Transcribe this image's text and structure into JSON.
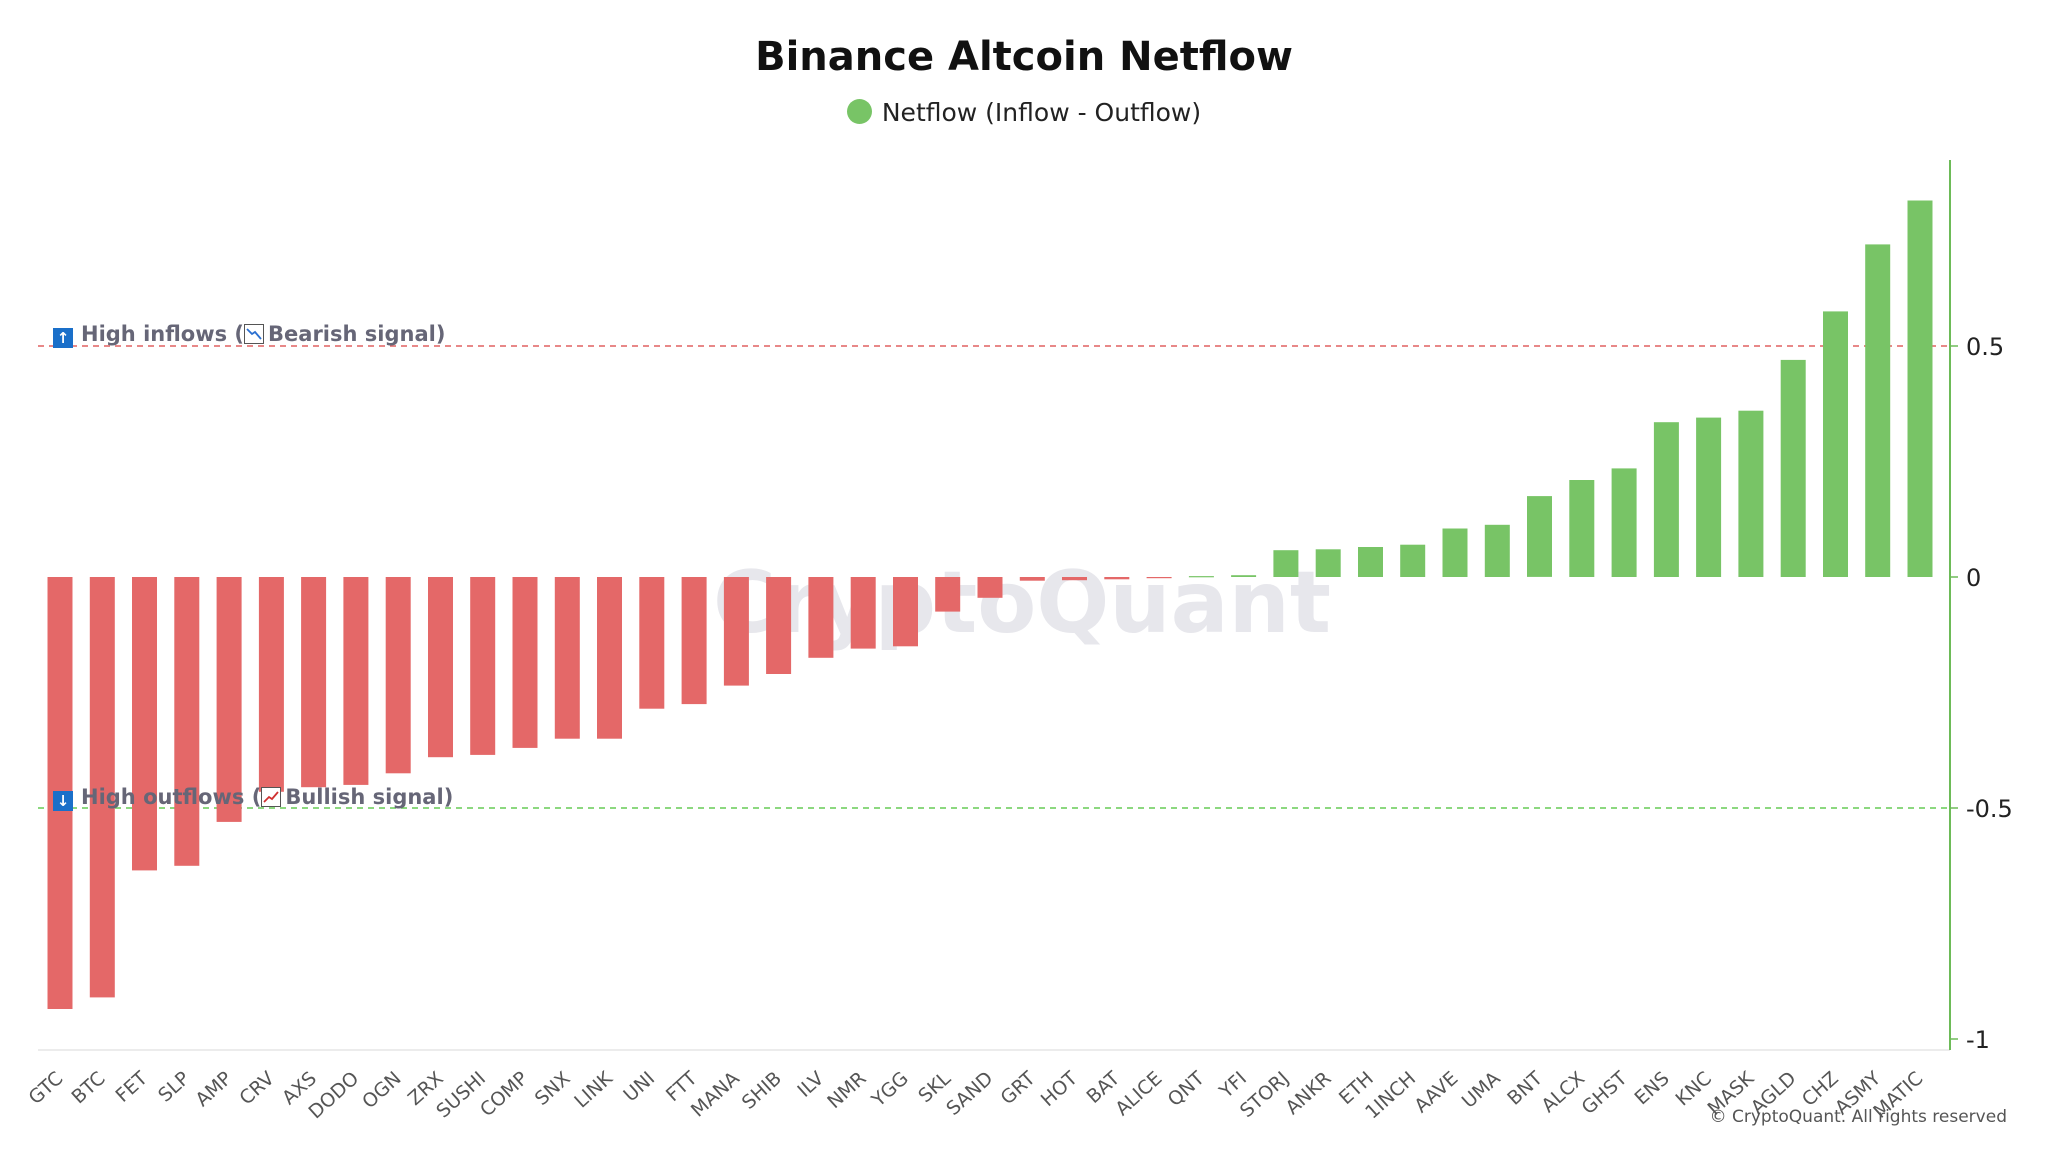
{
  "chart_data": {
    "type": "bar",
    "title": "Binance Altcoin Netflow",
    "legend": [
      {
        "name": "Netflow (Inflow - Outflow)",
        "color": "#78c466"
      }
    ],
    "categories": [
      "GTC",
      "BTC",
      "FET",
      "SLP",
      "AMP",
      "CRV",
      "AXS",
      "DODO",
      "OGN",
      "ZRX",
      "SUSHI",
      "COMP",
      "SNX",
      "LINK",
      "UNI",
      "FTT",
      "MANA",
      "SHIB",
      "ILV",
      "NMR",
      "YGG",
      "SKL",
      "SAND",
      "GRT",
      "HOT",
      "BAT",
      "ALICE",
      "QNT",
      "YFI",
      "STORJ",
      "ANKR",
      "ETH",
      "1INCH",
      "AAVE",
      "UMA",
      "BNT",
      "ALCX",
      "GHST",
      "ENS",
      "KNC",
      "MASK",
      "AGLD",
      "CHZ",
      "ASMY",
      "MATIC"
    ],
    "values": [
      -0.935,
      -0.91,
      -0.635,
      -0.625,
      -0.53,
      -0.465,
      -0.455,
      -0.45,
      -0.425,
      -0.39,
      -0.385,
      -0.37,
      -0.35,
      -0.35,
      -0.285,
      -0.275,
      -0.235,
      -0.21,
      -0.175,
      -0.155,
      -0.15,
      -0.075,
      -0.045,
      -0.008,
      -0.007,
      -0.005,
      -0.001,
      0.002,
      0.004,
      0.058,
      0.06,
      0.065,
      0.07,
      0.105,
      0.113,
      0.175,
      0.21,
      0.235,
      0.335,
      0.345,
      0.36,
      0.47,
      0.575,
      0.72,
      0.815
    ],
    "positive_color": "#78c466",
    "negative_color": "#e46868",
    "yticks": [
      0.5,
      0,
      -0.5,
      -1
    ],
    "ytick_labels": [
      "0.5",
      "0",
      "-0.5",
      "-1"
    ],
    "ylim": [
      -1.02,
      0.9
    ],
    "y_axis_side": "right",
    "thresholds": [
      {
        "value": 0.5,
        "color": "#e06060",
        "label": "High inflows",
        "signal": "Bearish signal"
      },
      {
        "value": -0.5,
        "color": "#66cc55",
        "label": "High outflows",
        "signal": "Bullish signal"
      }
    ],
    "watermark": "CryptoQuant"
  },
  "annotations": {
    "inflow": {
      "arrow": "↑",
      "label": "High inflows",
      "open": " (",
      "signal": "Bearish signal",
      "close": ")"
    },
    "outflow": {
      "arrow": "↓",
      "label": "High outflows",
      "open": " (",
      "signal": "Bullish signal",
      "close": ")"
    }
  },
  "icons": {
    "inflow": "chart-decreasing-icon",
    "outflow": "chart-increasing-icon"
  },
  "copyright": "© CryptoQuant. All rights reserved"
}
